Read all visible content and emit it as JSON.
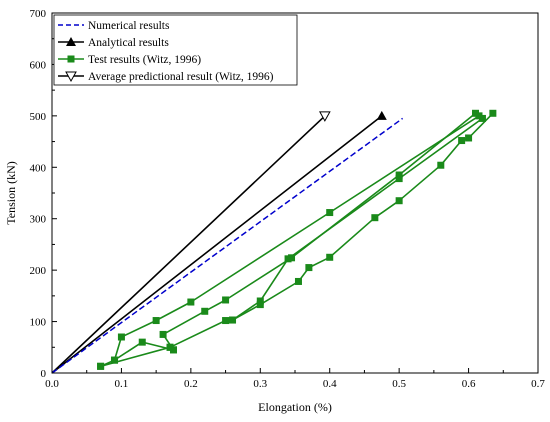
{
  "chart_data": {
    "type": "line",
    "title": "",
    "xlabel": "Elongation (%)",
    "ylabel": "Tension (kN)",
    "xlim": [
      0,
      0.7
    ],
    "ylim": [
      0,
      700
    ],
    "xticks": [
      "0.0",
      "0.1",
      "0.2",
      "0.3",
      "0.4",
      "0.5",
      "0.6",
      "0.7"
    ],
    "yticks": [
      "0",
      "100",
      "200",
      "300",
      "400",
      "500",
      "600",
      "700"
    ],
    "grid": false,
    "legend_position": "top-left",
    "colors": {
      "numerical": "#0000cc",
      "analytical": "#000000",
      "test": "#1a8a1a",
      "average": "#000000"
    },
    "series": [
      {
        "name": "Numerical results",
        "style": "dashed-line",
        "x": [
          0,
          0.505
        ],
        "y": [
          0,
          495
        ]
      },
      {
        "name": "Analytical results",
        "style": "line-filled-triangle-end",
        "x": [
          0,
          0.475
        ],
        "y": [
          0,
          500
        ]
      },
      {
        "name": "Test results (Witz, 1996)",
        "style": "line-square-markers",
        "segments": [
          {
            "x": [
              0.07,
              0.09,
              0.1,
              0.15,
              0.2,
              0.4,
              0.615
            ],
            "y": [
              13,
              25,
              70,
              102,
              138,
              312,
              500
            ]
          },
          {
            "x": [
              0.07,
              0.17,
              0.175,
              0.16,
              0.22,
              0.25,
              0.345,
              0.5,
              0.61
            ],
            "y": [
              13,
              50,
              45,
              75,
              120,
              142,
              224,
              385,
              505
            ]
          },
          {
            "x": [
              0.17,
              0.25,
              0.26,
              0.3,
              0.34,
              0.5,
              0.62
            ],
            "y": [
              50,
              102,
              103,
              140,
              222,
              378,
              495
            ]
          },
          {
            "x": [
              0.175,
              0.13,
              0.09
            ],
            "y": [
              45,
              60,
              25
            ]
          },
          {
            "x": [
              0.26,
              0.3,
              0.355,
              0.37,
              0.4,
              0.465,
              0.5,
              0.56,
              0.59,
              0.6,
              0.635
            ],
            "y": [
              103,
              133,
              178,
              205,
              225,
              302,
              335,
              404,
              452,
              457,
              505
            ]
          }
        ]
      },
      {
        "name": "Average predictional result (Witz, 1996)",
        "style": "line-open-triangle-end",
        "x": [
          0,
          0.393
        ],
        "y": [
          0,
          500
        ]
      }
    ]
  }
}
